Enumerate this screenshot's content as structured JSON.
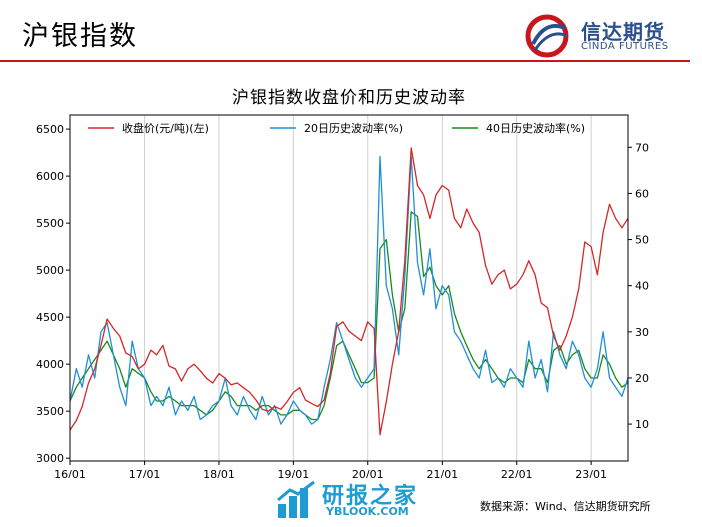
{
  "header": {
    "title": "沪银指数"
  },
  "logo": {
    "name_cn": "信达期货",
    "name_en": "CINDA FUTURES"
  },
  "watermark": {
    "text_cn": "研报之家",
    "text_en": "YBLOOK.COM"
  },
  "source": "数据来源：Wind、信达期货研究所",
  "colors": {
    "price": "#d62728",
    "vol20": "#1f8fd6",
    "vol40": "#1a8a1a",
    "header_rule": "#c8161d"
  },
  "chart_data": {
    "type": "line",
    "title": "沪银指数收盘价和历史波动率",
    "x_ticks": [
      "16/01",
      "17/01",
      "18/01",
      "19/01",
      "20/01",
      "21/01",
      "22/01",
      "23/01"
    ],
    "x_range": [
      "2016-01",
      "2023-07"
    ],
    "y_left": {
      "ticks": [
        3000,
        3500,
        4000,
        4500,
        5000,
        5500,
        6000,
        6500
      ],
      "range": [
        2970,
        6650
      ]
    },
    "y_right": {
      "ticks": [
        10,
        20,
        30,
        40,
        50,
        60,
        70
      ],
      "range": [
        2,
        77
      ]
    },
    "grid": "vertical",
    "legend": "top",
    "series": [
      {
        "name": "收盘价(元/吨)(左)",
        "axis": "left",
        "points": [
          [
            "2016-01",
            3300
          ],
          [
            "2016-02",
            3400
          ],
          [
            "2016-03",
            3550
          ],
          [
            "2016-04",
            3800
          ],
          [
            "2016-05",
            3950
          ],
          [
            "2016-06",
            4200
          ],
          [
            "2016-07",
            4480
          ],
          [
            "2016-08",
            4380
          ],
          [
            "2016-09",
            4300
          ],
          [
            "2016-10",
            4120
          ],
          [
            "2016-11",
            4080
          ],
          [
            "2016-12",
            3950
          ],
          [
            "2017-01",
            4000
          ],
          [
            "2017-02",
            4150
          ],
          [
            "2017-03",
            4100
          ],
          [
            "2017-04",
            4200
          ],
          [
            "2017-05",
            3980
          ],
          [
            "2017-06",
            3950
          ],
          [
            "2017-07",
            3820
          ],
          [
            "2017-08",
            3950
          ],
          [
            "2017-09",
            4000
          ],
          [
            "2017-10",
            3930
          ],
          [
            "2017-11",
            3850
          ],
          [
            "2017-12",
            3800
          ],
          [
            "2018-01",
            3900
          ],
          [
            "2018-02",
            3850
          ],
          [
            "2018-03",
            3780
          ],
          [
            "2018-04",
            3800
          ],
          [
            "2018-05",
            3750
          ],
          [
            "2018-06",
            3700
          ],
          [
            "2018-07",
            3620
          ],
          [
            "2018-08",
            3520
          ],
          [
            "2018-09",
            3500
          ],
          [
            "2018-10",
            3550
          ],
          [
            "2018-11",
            3520
          ],
          [
            "2018-12",
            3600
          ],
          [
            "2019-01",
            3700
          ],
          [
            "2019-02",
            3750
          ],
          [
            "2019-03",
            3620
          ],
          [
            "2019-04",
            3580
          ],
          [
            "2019-05",
            3550
          ],
          [
            "2019-06",
            3620
          ],
          [
            "2019-07",
            3900
          ],
          [
            "2019-08",
            4400
          ],
          [
            "2019-09",
            4450
          ],
          [
            "2019-10",
            4350
          ],
          [
            "2019-11",
            4300
          ],
          [
            "2019-12",
            4250
          ],
          [
            "2020-01",
            4450
          ],
          [
            "2020-02",
            4380
          ],
          [
            "2020-03",
            3250
          ],
          [
            "2020-04",
            3600
          ],
          [
            "2020-05",
            4000
          ],
          [
            "2020-06",
            4350
          ],
          [
            "2020-07",
            5100
          ],
          [
            "2020-08",
            6300
          ],
          [
            "2020-09",
            5900
          ],
          [
            "2020-10",
            5800
          ],
          [
            "2020-11",
            5550
          ],
          [
            "2020-12",
            5800
          ],
          [
            "2021-01",
            5900
          ],
          [
            "2021-02",
            5850
          ],
          [
            "2021-03",
            5550
          ],
          [
            "2021-04",
            5450
          ],
          [
            "2021-05",
            5650
          ],
          [
            "2021-06",
            5500
          ],
          [
            "2021-07",
            5400
          ],
          [
            "2021-08",
            5050
          ],
          [
            "2021-09",
            4850
          ],
          [
            "2021-10",
            4950
          ],
          [
            "2021-11",
            5000
          ],
          [
            "2021-12",
            4800
          ],
          [
            "2022-01",
            4850
          ],
          [
            "2022-02",
            4950
          ],
          [
            "2022-03",
            5100
          ],
          [
            "2022-04",
            4950
          ],
          [
            "2022-05",
            4650
          ],
          [
            "2022-06",
            4600
          ],
          [
            "2022-07",
            4300
          ],
          [
            "2022-08",
            4150
          ],
          [
            "2022-09",
            4300
          ],
          [
            "2022-10",
            4500
          ],
          [
            "2022-11",
            4800
          ],
          [
            "2022-12",
            5300
          ],
          [
            "2023-01",
            5250
          ],
          [
            "2023-02",
            4950
          ],
          [
            "2023-03",
            5400
          ],
          [
            "2023-04",
            5700
          ],
          [
            "2023-05",
            5550
          ],
          [
            "2023-06",
            5450
          ],
          [
            "2023-07",
            5550
          ]
        ]
      },
      {
        "name": "20日历史波动率(%)",
        "axis": "right",
        "points": [
          [
            "2016-01",
            15
          ],
          [
            "2016-02",
            22
          ],
          [
            "2016-03",
            18
          ],
          [
            "2016-04",
            25
          ],
          [
            "2016-05",
            20
          ],
          [
            "2016-06",
            30
          ],
          [
            "2016-07",
            32
          ],
          [
            "2016-08",
            25
          ],
          [
            "2016-09",
            18
          ],
          [
            "2016-10",
            14
          ],
          [
            "2016-11",
            28
          ],
          [
            "2016-12",
            22
          ],
          [
            "2017-01",
            20
          ],
          [
            "2017-02",
            14
          ],
          [
            "2017-03",
            16
          ],
          [
            "2017-04",
            14
          ],
          [
            "2017-05",
            18
          ],
          [
            "2017-06",
            12
          ],
          [
            "2017-07",
            15
          ],
          [
            "2017-08",
            13
          ],
          [
            "2017-09",
            16
          ],
          [
            "2017-10",
            11
          ],
          [
            "2017-11",
            12
          ],
          [
            "2017-12",
            14
          ],
          [
            "2018-01",
            15
          ],
          [
            "2018-02",
            20
          ],
          [
            "2018-03",
            14
          ],
          [
            "2018-04",
            12
          ],
          [
            "2018-05",
            16
          ],
          [
            "2018-06",
            13
          ],
          [
            "2018-07",
            11
          ],
          [
            "2018-08",
            16
          ],
          [
            "2018-09",
            12
          ],
          [
            "2018-10",
            14
          ],
          [
            "2018-11",
            10
          ],
          [
            "2018-12",
            12
          ],
          [
            "2019-01",
            15
          ],
          [
            "2019-02",
            13
          ],
          [
            "2019-03",
            12
          ],
          [
            "2019-04",
            10
          ],
          [
            "2019-05",
            11
          ],
          [
            "2019-06",
            18
          ],
          [
            "2019-07",
            24
          ],
          [
            "2019-08",
            32
          ],
          [
            "2019-09",
            28
          ],
          [
            "2019-10",
            24
          ],
          [
            "2019-11",
            20
          ],
          [
            "2019-12",
            18
          ],
          [
            "2020-01",
            20
          ],
          [
            "2020-02",
            22
          ],
          [
            "2020-03",
            68
          ],
          [
            "2020-04",
            40
          ],
          [
            "2020-05",
            35
          ],
          [
            "2020-06",
            25
          ],
          [
            "2020-07",
            42
          ],
          [
            "2020-08",
            68
          ],
          [
            "2020-09",
            45
          ],
          [
            "2020-10",
            38
          ],
          [
            "2020-11",
            48
          ],
          [
            "2020-12",
            35
          ],
          [
            "2021-01",
            40
          ],
          [
            "2021-02",
            38
          ],
          [
            "2021-03",
            30
          ],
          [
            "2021-04",
            28
          ],
          [
            "2021-05",
            25
          ],
          [
            "2021-06",
            22
          ],
          [
            "2021-07",
            20
          ],
          [
            "2021-08",
            26
          ],
          [
            "2021-09",
            19
          ],
          [
            "2021-10",
            20
          ],
          [
            "2021-11",
            18
          ],
          [
            "2021-12",
            22
          ],
          [
            "2022-01",
            20
          ],
          [
            "2022-02",
            18
          ],
          [
            "2022-03",
            28
          ],
          [
            "2022-04",
            20
          ],
          [
            "2022-05",
            24
          ],
          [
            "2022-06",
            17
          ],
          [
            "2022-07",
            30
          ],
          [
            "2022-08",
            25
          ],
          [
            "2022-09",
            22
          ],
          [
            "2022-10",
            28
          ],
          [
            "2022-11",
            25
          ],
          [
            "2022-12",
            20
          ],
          [
            "2023-01",
            18
          ],
          [
            "2023-02",
            22
          ],
          [
            "2023-03",
            30
          ],
          [
            "2023-04",
            20
          ],
          [
            "2023-05",
            18
          ],
          [
            "2023-06",
            16
          ],
          [
            "2023-07",
            20
          ]
        ]
      },
      {
        "name": "40日历史波动率(%)",
        "axis": "right",
        "points": [
          [
            "2016-01",
            15
          ],
          [
            "2016-02",
            18
          ],
          [
            "2016-03",
            20
          ],
          [
            "2016-04",
            22
          ],
          [
            "2016-05",
            24
          ],
          [
            "2016-06",
            26
          ],
          [
            "2016-07",
            28
          ],
          [
            "2016-08",
            25
          ],
          [
            "2016-09",
            22
          ],
          [
            "2016-10",
            18
          ],
          [
            "2016-11",
            22
          ],
          [
            "2016-12",
            21
          ],
          [
            "2017-01",
            20
          ],
          [
            "2017-02",
            17
          ],
          [
            "2017-03",
            15
          ],
          [
            "2017-04",
            15
          ],
          [
            "2017-05",
            16
          ],
          [
            "2017-06",
            15
          ],
          [
            "2017-07",
            14
          ],
          [
            "2017-08",
            14
          ],
          [
            "2017-09",
            14
          ],
          [
            "2017-10",
            13
          ],
          [
            "2017-11",
            12
          ],
          [
            "2017-12",
            13
          ],
          [
            "2018-01",
            15
          ],
          [
            "2018-02",
            17
          ],
          [
            "2018-03",
            16
          ],
          [
            "2018-04",
            14
          ],
          [
            "2018-05",
            14
          ],
          [
            "2018-06",
            14
          ],
          [
            "2018-07",
            13
          ],
          [
            "2018-08",
            14
          ],
          [
            "2018-09",
            14
          ],
          [
            "2018-10",
            13
          ],
          [
            "2018-11",
            12
          ],
          [
            "2018-12",
            12
          ],
          [
            "2019-01",
            13
          ],
          [
            "2019-02",
            13
          ],
          [
            "2019-03",
            12
          ],
          [
            "2019-04",
            11
          ],
          [
            "2019-05",
            11
          ],
          [
            "2019-06",
            14
          ],
          [
            "2019-07",
            20
          ],
          [
            "2019-08",
            27
          ],
          [
            "2019-09",
            28
          ],
          [
            "2019-10",
            25
          ],
          [
            "2019-11",
            22
          ],
          [
            "2019-12",
            19
          ],
          [
            "2020-01",
            19
          ],
          [
            "2020-02",
            20
          ],
          [
            "2020-03",
            48
          ],
          [
            "2020-04",
            50
          ],
          [
            "2020-05",
            38
          ],
          [
            "2020-06",
            30
          ],
          [
            "2020-07",
            35
          ],
          [
            "2020-08",
            56
          ],
          [
            "2020-09",
            55
          ],
          [
            "2020-10",
            42
          ],
          [
            "2020-11",
            44
          ],
          [
            "2020-12",
            40
          ],
          [
            "2021-01",
            38
          ],
          [
            "2021-02",
            40
          ],
          [
            "2021-03",
            34
          ],
          [
            "2021-04",
            30
          ],
          [
            "2021-05",
            27
          ],
          [
            "2021-06",
            24
          ],
          [
            "2021-07",
            22
          ],
          [
            "2021-08",
            24
          ],
          [
            "2021-09",
            22
          ],
          [
            "2021-10",
            20
          ],
          [
            "2021-11",
            19
          ],
          [
            "2021-12",
            20
          ],
          [
            "2022-01",
            20
          ],
          [
            "2022-02",
            19
          ],
          [
            "2022-03",
            24
          ],
          [
            "2022-04",
            22
          ],
          [
            "2022-05",
            22
          ],
          [
            "2022-06",
            19
          ],
          [
            "2022-07",
            26
          ],
          [
            "2022-08",
            27
          ],
          [
            "2022-09",
            23
          ],
          [
            "2022-10",
            25
          ],
          [
            "2022-11",
            26
          ],
          [
            "2022-12",
            22
          ],
          [
            "2023-01",
            20
          ],
          [
            "2023-02",
            20
          ],
          [
            "2023-03",
            25
          ],
          [
            "2023-04",
            23
          ],
          [
            "2023-05",
            20
          ],
          [
            "2023-06",
            18
          ],
          [
            "2023-07",
            19
          ]
        ]
      }
    ]
  }
}
